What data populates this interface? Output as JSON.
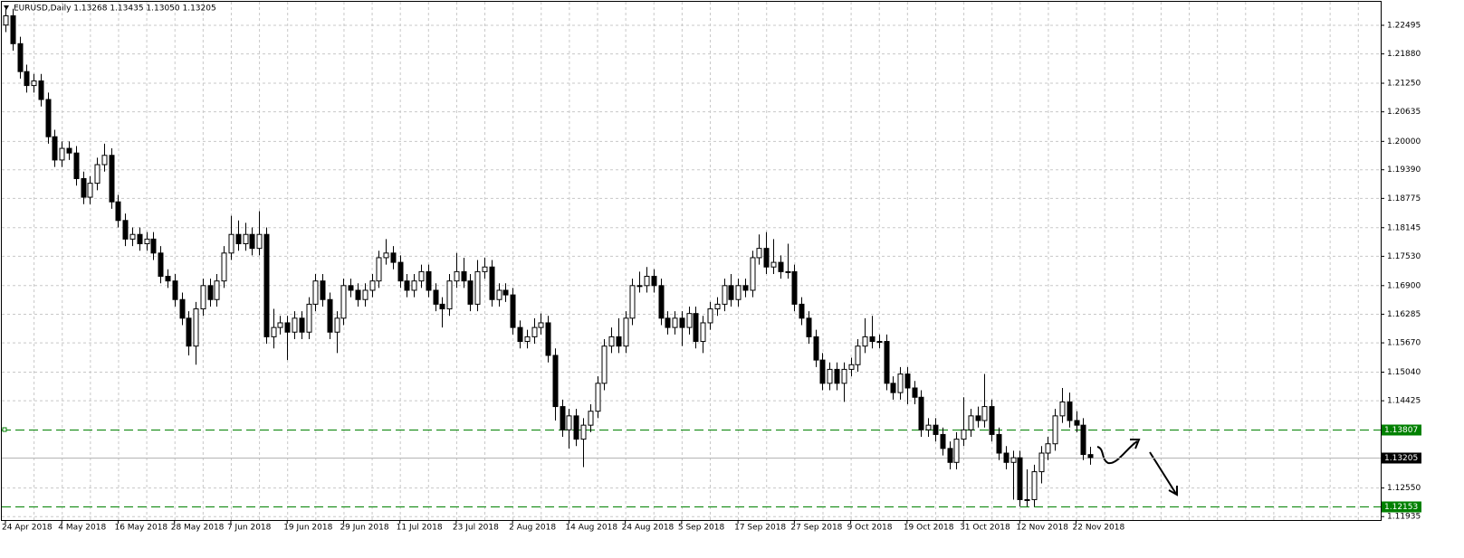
{
  "chart_data": {
    "type": "candlestick",
    "title": "EURUSD,Daily  1.13268 1.13435 1.13050 1.13205",
    "categories": [
      "24 Apr 2018",
      null,
      null,
      null,
      null,
      null,
      null,
      null,
      "4 May 2018",
      null,
      null,
      null,
      null,
      null,
      null,
      null,
      "16 May 2018",
      null,
      null,
      null,
      null,
      null,
      null,
      null,
      "28 May 2018",
      null,
      null,
      null,
      null,
      null,
      null,
      null,
      "7 Jun 2018",
      null,
      null,
      null,
      null,
      null,
      null,
      null,
      "19 Jun 2018",
      null,
      null,
      null,
      null,
      null,
      null,
      null,
      "29 Jun 2018",
      null,
      null,
      null,
      null,
      null,
      null,
      null,
      "11 Jul 2018",
      null,
      null,
      null,
      null,
      null,
      null,
      null,
      "23 Jul 2018",
      null,
      null,
      null,
      null,
      null,
      null,
      null,
      "2 Aug 2018",
      null,
      null,
      null,
      null,
      null,
      null,
      null,
      "14 Aug 2018",
      null,
      null,
      null,
      null,
      null,
      null,
      null,
      "24 Aug 2018",
      null,
      null,
      null,
      null,
      null,
      null,
      null,
      "5 Sep 2018",
      null,
      null,
      null,
      null,
      null,
      null,
      null,
      "17 Sep 2018",
      null,
      null,
      null,
      null,
      null,
      null,
      null,
      "27 Sep 2018",
      null,
      null,
      null,
      null,
      null,
      null,
      null,
      "9 Oct 2018",
      null,
      null,
      null,
      null,
      null,
      null,
      null,
      "19 Oct 2018",
      null,
      null,
      null,
      null,
      null,
      null,
      null,
      "31 Oct 2018",
      null,
      null,
      null,
      null,
      null,
      null,
      null,
      "12 Nov 2018",
      null,
      null,
      null,
      null,
      null,
      null,
      null,
      "22 Nov 2018",
      null,
      null
    ],
    "open": [
      1.225,
      1.227,
      1.221,
      1.215,
      1.212,
      1.213,
      1.209,
      1.201,
      1.196,
      1.1985,
      1.1975,
      1.192,
      1.188,
      1.191,
      1.195,
      1.197,
      1.187,
      1.183,
      1.179,
      1.18,
      1.178,
      1.179,
      1.176,
      1.171,
      1.17,
      1.166,
      1.162,
      1.156,
      1.164,
      1.169,
      1.166,
      1.17,
      1.176,
      1.18,
      1.178,
      1.18,
      1.177,
      1.18,
      1.158,
      1.16,
      1.161,
      1.159,
      1.162,
      1.159,
      1.165,
      1.17,
      1.166,
      1.159,
      1.162,
      1.169,
      1.168,
      1.166,
      1.168,
      1.17,
      1.175,
      1.176,
      1.174,
      1.17,
      1.168,
      1.17,
      1.172,
      1.168,
      1.165,
      1.164,
      1.17,
      1.172,
      1.17,
      1.165,
      1.172,
      1.173,
      1.166,
      1.168,
      1.167,
      1.16,
      1.157,
      1.158,
      1.16,
      1.161,
      1.154,
      1.143,
      1.138,
      1.141,
      1.136,
      1.139,
      1.142,
      1.148,
      1.156,
      1.158,
      1.156,
      1.162,
      1.169,
      1.169,
      1.171,
      1.169,
      1.162,
      1.16,
      1.162,
      1.16,
      1.163,
      1.157,
      1.161,
      1.164,
      1.165,
      1.169,
      1.166,
      1.169,
      1.168,
      1.175,
      1.177,
      1.173,
      1.174,
      1.172,
      1.172,
      1.165,
      1.162,
      1.158,
      1.153,
      1.148,
      1.151,
      1.148,
      1.151,
      1.152,
      1.156,
      1.158,
      1.157,
      1.157,
      1.148,
      1.146,
      1.15,
      1.147,
      1.145,
      1.138,
      1.139,
      1.137,
      1.134,
      1.131,
      1.136,
      1.138,
      1.141,
      1.14,
      1.143,
      1.137,
      1.133,
      1.131,
      1.132,
      1.123,
      1.123,
      1.129,
      1.133,
      1.135,
      1.141,
      1.144,
      1.14,
      1.139,
      1.13268
    ],
    "high": [
      1.2285,
      1.2285,
      1.2225,
      1.2165,
      1.2145,
      1.2145,
      1.2105,
      1.2025,
      1.2,
      1.2,
      1.199,
      1.1935,
      1.1925,
      1.1965,
      1.1995,
      1.1985,
      1.1885,
      1.1845,
      1.1815,
      1.1815,
      1.1805,
      1.1805,
      1.1775,
      1.1725,
      1.1715,
      1.1675,
      1.1635,
      1.1655,
      1.1705,
      1.1705,
      1.1715,
      1.1775,
      1.184,
      1.183,
      1.1825,
      1.1815,
      1.185,
      1.1815,
      1.164,
      1.1625,
      1.1625,
      1.1635,
      1.1635,
      1.1665,
      1.1715,
      1.1715,
      1.1675,
      1.1635,
      1.1705,
      1.1705,
      1.1695,
      1.1695,
      1.1715,
      1.1765,
      1.179,
      1.1775,
      1.1755,
      1.1715,
      1.1715,
      1.1735,
      1.1735,
      1.1695,
      1.1665,
      1.1715,
      1.176,
      1.175,
      1.1715,
      1.1745,
      1.175,
      1.1745,
      1.1695,
      1.1695,
      1.1685,
      1.1615,
      1.1595,
      1.162,
      1.163,
      1.1625,
      1.1555,
      1.1445,
      1.1425,
      1.1425,
      1.1405,
      1.1435,
      1.1495,
      1.1575,
      1.16,
      1.162,
      1.1635,
      1.1705,
      1.172,
      1.173,
      1.1725,
      1.1705,
      1.1635,
      1.1635,
      1.1635,
      1.1645,
      1.1645,
      1.1625,
      1.1655,
      1.1665,
      1.1705,
      1.1715,
      1.1705,
      1.1705,
      1.1765,
      1.18,
      1.1805,
      1.179,
      1.1755,
      1.178,
      1.1735,
      1.1665,
      1.1635,
      1.1595,
      1.1545,
      1.1525,
      1.1525,
      1.1525,
      1.1535,
      1.1575,
      1.162,
      1.1625,
      1.1585,
      1.1585,
      1.1495,
      1.1515,
      1.1515,
      1.1485,
      1.1465,
      1.1405,
      1.1405,
      1.1385,
      1.1355,
      1.1375,
      1.145,
      1.1425,
      1.143,
      1.15,
      1.1445,
      1.1385,
      1.1345,
      1.1335,
      1.1335,
      1.1295,
      1.1305,
      1.1345,
      1.1365,
      1.1425,
      1.147,
      1.146,
      1.142,
      1.1405,
      1.13435
    ],
    "low": [
      1.2235,
      1.2195,
      1.2135,
      1.2105,
      1.2105,
      1.2075,
      1.1995,
      1.1945,
      1.1945,
      1.196,
      1.1905,
      1.1865,
      1.1865,
      1.1895,
      1.1935,
      1.1855,
      1.1815,
      1.1775,
      1.1775,
      1.1765,
      1.1765,
      1.1745,
      1.1695,
      1.1685,
      1.1645,
      1.1605,
      1.154,
      1.152,
      1.1625,
      1.1645,
      1.1645,
      1.1685,
      1.1745,
      1.1765,
      1.1765,
      1.1755,
      1.1755,
      1.1565,
      1.1555,
      1.1585,
      1.153,
      1.1575,
      1.1575,
      1.1575,
      1.1635,
      1.1645,
      1.1575,
      1.1545,
      1.1605,
      1.1665,
      1.1645,
      1.1645,
      1.1665,
      1.1685,
      1.1735,
      1.1725,
      1.1685,
      1.1665,
      1.1665,
      1.1685,
      1.1665,
      1.1635,
      1.16,
      1.1625,
      1.1685,
      1.1685,
      1.1635,
      1.1635,
      1.1705,
      1.1645,
      1.1645,
      1.1655,
      1.1585,
      1.1555,
      1.1555,
      1.1565,
      1.1585,
      1.1525,
      1.14,
      1.1365,
      1.134,
      1.1345,
      1.13,
      1.1375,
      1.1405,
      1.1465,
      1.1545,
      1.1545,
      1.1545,
      1.1605,
      1.1675,
      1.1675,
      1.1675,
      1.1605,
      1.1585,
      1.1585,
      1.156,
      1.1585,
      1.1555,
      1.1545,
      1.1595,
      1.1625,
      1.1635,
      1.1645,
      1.1645,
      1.1665,
      1.1665,
      1.1735,
      1.1715,
      1.1715,
      1.1705,
      1.1705,
      1.1635,
      1.1605,
      1.1565,
      1.1515,
      1.1465,
      1.1465,
      1.1465,
      1.144,
      1.1495,
      1.1505,
      1.1545,
      1.1555,
      1.1555,
      1.1465,
      1.1445,
      1.1445,
      1.1435,
      1.1435,
      1.1365,
      1.1365,
      1.1355,
      1.1325,
      1.1295,
      1.1295,
      1.1345,
      1.1365,
      1.1385,
      1.1385,
      1.1355,
      1.1315,
      1.1295,
      1.123,
      1.1215,
      1.1215,
      1.1215,
      1.1265,
      1.1315,
      1.1335,
      1.1395,
      1.1385,
      1.1375,
      1.1315,
      1.1305
    ],
    "close": [
      1.227,
      1.221,
      1.215,
      1.212,
      1.213,
      1.209,
      1.201,
      1.196,
      1.1985,
      1.1975,
      1.192,
      1.188,
      1.191,
      1.195,
      1.197,
      1.187,
      1.183,
      1.179,
      1.18,
      1.178,
      1.179,
      1.176,
      1.171,
      1.17,
      1.166,
      1.162,
      1.156,
      1.164,
      1.169,
      1.166,
      1.17,
      1.176,
      1.18,
      1.178,
      1.18,
      1.177,
      1.18,
      1.158,
      1.16,
      1.161,
      1.159,
      1.162,
      1.159,
      1.165,
      1.17,
      1.166,
      1.159,
      1.162,
      1.169,
      1.168,
      1.166,
      1.168,
      1.17,
      1.175,
      1.176,
      1.174,
      1.17,
      1.168,
      1.17,
      1.172,
      1.168,
      1.165,
      1.164,
      1.17,
      1.172,
      1.17,
      1.165,
      1.172,
      1.173,
      1.166,
      1.168,
      1.167,
      1.16,
      1.157,
      1.158,
      1.16,
      1.161,
      1.154,
      1.143,
      1.138,
      1.141,
      1.136,
      1.139,
      1.142,
      1.148,
      1.156,
      1.158,
      1.156,
      1.162,
      1.169,
      1.169,
      1.171,
      1.169,
      1.162,
      1.16,
      1.162,
      1.16,
      1.163,
      1.157,
      1.161,
      1.164,
      1.165,
      1.169,
      1.166,
      1.169,
      1.168,
      1.175,
      1.177,
      1.173,
      1.174,
      1.172,
      1.172,
      1.165,
      1.162,
      1.158,
      1.153,
      1.148,
      1.151,
      1.148,
      1.151,
      1.152,
      1.156,
      1.158,
      1.157,
      1.157,
      1.148,
      1.146,
      1.15,
      1.147,
      1.145,
      1.138,
      1.139,
      1.137,
      1.134,
      1.131,
      1.136,
      1.138,
      1.141,
      1.14,
      1.143,
      1.137,
      1.133,
      1.131,
      1.132,
      1.123,
      1.123,
      1.129,
      1.133,
      1.135,
      1.141,
      1.144,
      1.14,
      1.139,
      1.1327,
      1.13205
    ],
    "ylim": [
      1.1192,
      1.23
    ],
    "yticks": [
      1.22495,
      {
        "value": 1.2188,
        "label": "1.21880"
      },
      {
        "value": 1.2125,
        "label": "1.21250"
      },
      1.20635,
      {
        "value": 1.2,
        "label": "1.20000"
      },
      {
        "value": 1.1939,
        "label": "1.19390"
      },
      1.18775,
      1.18145,
      {
        "value": 1.1753,
        "label": "1.17530"
      },
      {
        "value": 1.169,
        "label": "1.16900"
      },
      1.16285,
      {
        "value": 1.1567,
        "label": "1.15670"
      },
      {
        "value": 1.1504,
        "label": "1.15040"
      },
      1.14425,
      {
        "value": 1.1255,
        "label": "1.12550"
      },
      1.11935
    ],
    "levels": [
      1.13807,
      1.12153
    ],
    "level_color": "#008000",
    "bid": 1.13205,
    "grid": true
  }
}
